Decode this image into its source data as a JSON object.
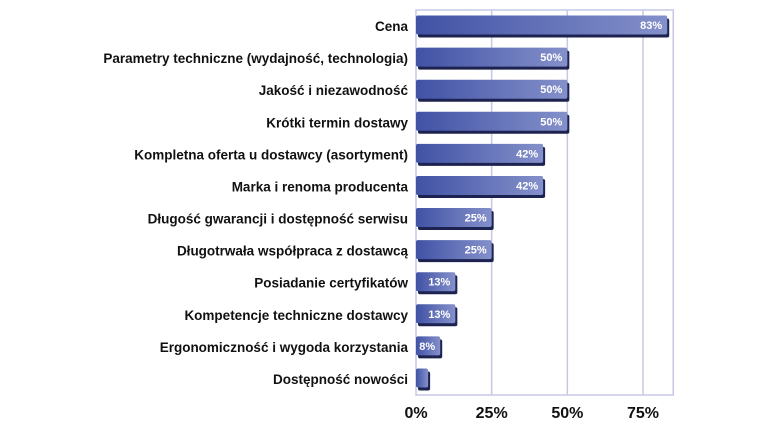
{
  "chart_data": {
    "type": "bar",
    "orientation": "horizontal",
    "title": "",
    "xlabel": "",
    "ylabel": "",
    "categories": [
      "Cena",
      "Parametry techniczne (wydajność, technologia)",
      "Jakość i niezawodność",
      "Krótki termin dostawy",
      "Kompletna oferta u dostawcy (asortyment)",
      "Marka i renoma producenta",
      "Długość gwarancji i dostępność serwisu",
      "Długotrwała współpraca z dostawcą",
      "Posiadanie certyfikatów",
      "Kompetencje techniczne dostawcy",
      "Ergonomiczność i wygoda korzystania",
      "Dostępność nowości"
    ],
    "values": [
      83,
      50,
      50,
      50,
      42,
      42,
      25,
      25,
      13,
      13,
      8,
      4
    ],
    "data_labels": [
      "83%",
      "50%",
      "50%",
      "50%",
      "42%",
      "42%",
      "25%",
      "25%",
      "13%",
      "13%",
      "8%",
      ""
    ],
    "xlim": [
      0,
      85
    ],
    "xticks": [
      0,
      25,
      50,
      75
    ],
    "xtick_labels": [
      "0%",
      "25%",
      "50%",
      "75%"
    ],
    "grid": true,
    "legend": "none",
    "colors": {
      "bar_dark": "#3d4fa3",
      "bar_light": "#8794cc",
      "shadow": "#1d2350",
      "grid": "#c5c9e6"
    }
  }
}
